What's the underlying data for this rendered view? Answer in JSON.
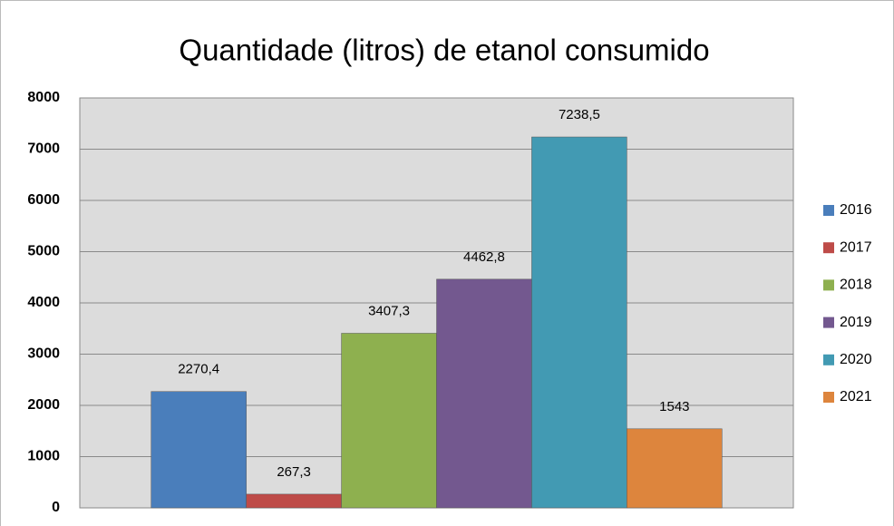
{
  "chart_data": {
    "type": "bar",
    "title": "Quantidade (litros) de etanol consumido",
    "categories": [
      null
    ],
    "series": [
      {
        "name": "2016",
        "color": "#4a7ebb",
        "values": [
          2270.4
        ],
        "value_labels": [
          "2270,4"
        ]
      },
      {
        "name": "2017",
        "color": "#be4b48",
        "values": [
          267.3
        ],
        "value_labels": [
          "267,3"
        ]
      },
      {
        "name": "2018",
        "color": "#8eb04f",
        "values": [
          3407.3
        ],
        "value_labels": [
          "3407,3"
        ]
      },
      {
        "name": "2019",
        "color": "#73588f",
        "values": [
          4462.8
        ],
        "value_labels": [
          "4462,8"
        ]
      },
      {
        "name": "2020",
        "color": "#429ab3",
        "values": [
          7238.5
        ],
        "value_labels": [
          "7238,5"
        ]
      },
      {
        "name": "2021",
        "color": "#dd853d",
        "values": [
          1543
        ],
        "value_labels": [
          "1543"
        ]
      }
    ],
    "ylim": [
      0,
      8000
    ],
    "yticks": [
      0,
      1000,
      2000,
      3000,
      4000,
      5000,
      6000,
      7000,
      8000
    ],
    "grid": true,
    "legend": "right"
  }
}
